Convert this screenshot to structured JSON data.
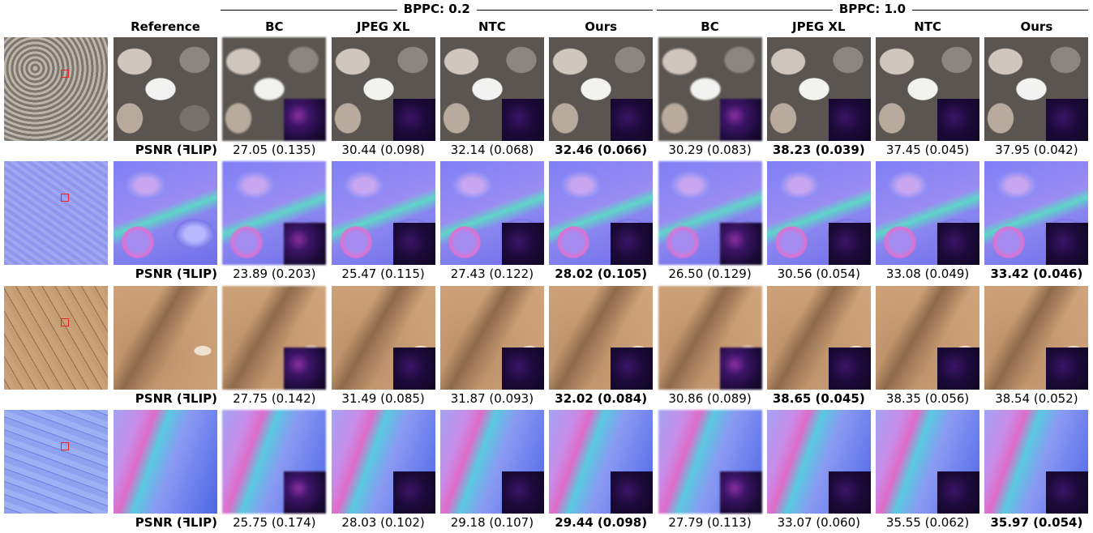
{
  "groups": [
    "BPPC: 0.2",
    "BPPC: 1.0"
  ],
  "columns": [
    "Reference",
    "BC",
    "JPEG XL",
    "NTC",
    "Ours",
    "BC",
    "JPEG XL",
    "NTC",
    "Ours"
  ],
  "rows": [
    {
      "label": "PSNR (ꟻLIP)",
      "scores": [
        {
          "text": "27.05 (0.135)",
          "bold": false
        },
        {
          "text": "30.44 (0.098)",
          "bold": false
        },
        {
          "text": "32.14 (0.068)",
          "bold": false
        },
        {
          "text": "32.46 (0.066)",
          "bold": true
        },
        {
          "text": "30.29 (0.083)",
          "bold": false
        },
        {
          "text": "38.23 (0.039)",
          "bold": true
        },
        {
          "text": "37.45 (0.045)",
          "bold": false
        },
        {
          "text": "37.95 (0.042)",
          "bold": false
        }
      ]
    },
    {
      "label": "PSNR (ꟻLIP)",
      "scores": [
        {
          "text": "23.89 (0.203)",
          "bold": false
        },
        {
          "text": "25.47 (0.115)",
          "bold": false
        },
        {
          "text": "27.43 (0.122)",
          "bold": false
        },
        {
          "text": "28.02 (0.105)",
          "bold": true
        },
        {
          "text": "26.50 (0.129)",
          "bold": false
        },
        {
          "text": "30.56 (0.054)",
          "bold": false
        },
        {
          "text": "33.08 (0.049)",
          "bold": false
        },
        {
          "text": "33.42 (0.046)",
          "bold": true
        }
      ]
    },
    {
      "label": "PSNR (ꟻLIP)",
      "scores": [
        {
          "text": "27.75 (0.142)",
          "bold": false
        },
        {
          "text": "31.49 (0.085)",
          "bold": false
        },
        {
          "text": "31.87 (0.093)",
          "bold": false
        },
        {
          "text": "32.02 (0.084)",
          "bold": true
        },
        {
          "text": "30.86 (0.089)",
          "bold": false
        },
        {
          "text": "38.65 (0.045)",
          "bold": true
        },
        {
          "text": "38.35 (0.056)",
          "bold": false
        },
        {
          "text": "38.54 (0.052)",
          "bold": false
        }
      ]
    },
    {
      "label": "PSNR (ꟻLIP)",
      "scores": [
        {
          "text": "25.75 (0.174)",
          "bold": false
        },
        {
          "text": "28.03 (0.102)",
          "bold": false
        },
        {
          "text": "29.18 (0.107)",
          "bold": false
        },
        {
          "text": "29.44 (0.098)",
          "bold": true
        },
        {
          "text": "27.79 (0.113)",
          "bold": false
        },
        {
          "text": "33.07 (0.060)",
          "bold": false
        },
        {
          "text": "35.55 (0.062)",
          "bold": false
        },
        {
          "text": "35.97 (0.054)",
          "bold": true
        }
      ]
    }
  ]
}
